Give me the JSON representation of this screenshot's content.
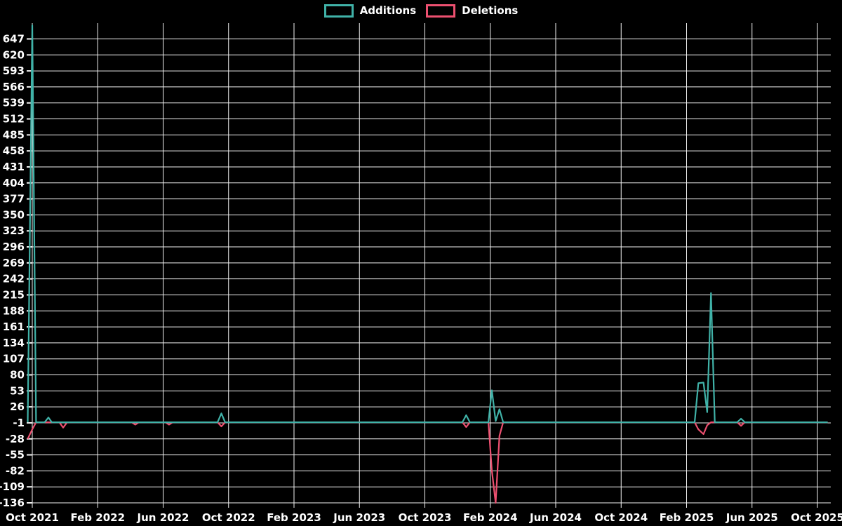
{
  "legend": {
    "items": [
      {
        "label": "Additions",
        "color": "#40b2a8"
      },
      {
        "label": "Deletions",
        "color": "#ed5070"
      }
    ]
  },
  "chart_data": {
    "type": "line",
    "title": "",
    "background_color": "#000000",
    "grid_color": "#f2f2f2",
    "text_color": "#ffffff",
    "grid": true,
    "legend_position": "top-center",
    "x_axis": {
      "start": "2021-09-23",
      "end": "2025-10-20",
      "tick_labels": [
        "Oct 2021",
        "Feb 2022",
        "Jun 2022",
        "Oct 2022",
        "Feb 2023",
        "Jun 2023",
        "Oct 2023",
        "Feb 2024",
        "Jun 2024",
        "Oct 2024",
        "Feb 2025",
        "Jun 2025",
        "Oct 2025"
      ]
    },
    "y_axis": {
      "min": -136,
      "max": 647,
      "step": 27,
      "tick_labels": [
        647,
        620,
        593,
        566,
        539,
        512,
        485,
        458,
        431,
        404,
        377,
        350,
        323,
        296,
        269,
        242,
        215,
        188,
        161,
        134,
        107,
        80,
        53,
        26,
        -1,
        -28,
        -55,
        -82,
        -109,
        -136
      ]
    },
    "series": [
      {
        "name": "Additions",
        "color": "#40b2a8"
      },
      {
        "name": "Deletions",
        "color": "#ed5070"
      }
    ],
    "points_format": [
      "date",
      "additions",
      "deletions"
    ],
    "points": [
      [
        "2021-09-23",
        0,
        -28
      ],
      [
        "2021-10-01",
        670,
        -12
      ],
      [
        "2021-10-08",
        0,
        0
      ],
      [
        "2021-10-24",
        0,
        0
      ],
      [
        "2021-10-31",
        8,
        0
      ],
      [
        "2021-11-07",
        0,
        0
      ],
      [
        "2021-11-21",
        0,
        0
      ],
      [
        "2021-11-28",
        0,
        -9
      ],
      [
        "2021-12-05",
        0,
        0
      ],
      [
        "2022-04-03",
        0,
        0
      ],
      [
        "2022-04-10",
        0,
        -4
      ],
      [
        "2022-04-17",
        0,
        0
      ],
      [
        "2022-06-05",
        0,
        0
      ],
      [
        "2022-06-12",
        0,
        -4
      ],
      [
        "2022-06-19",
        0,
        0
      ],
      [
        "2022-09-11",
        0,
        0
      ],
      [
        "2022-09-18",
        15,
        -7
      ],
      [
        "2022-09-25",
        0,
        0
      ],
      [
        "2023-12-10",
        0,
        0
      ],
      [
        "2023-12-17",
        12,
        -8
      ],
      [
        "2023-12-24",
        0,
        0
      ],
      [
        "2024-01-28",
        0,
        0
      ],
      [
        "2024-02-04",
        54,
        -82
      ],
      [
        "2024-02-11",
        2,
        -136
      ],
      [
        "2024-02-18",
        22,
        -23
      ],
      [
        "2024-02-25",
        0,
        0
      ],
      [
        "2025-02-16",
        0,
        0
      ],
      [
        "2025-02-23",
        66,
        -12
      ],
      [
        "2025-03-02",
        67,
        -20
      ],
      [
        "2025-03-09",
        17,
        -5
      ],
      [
        "2025-03-16",
        218,
        0
      ],
      [
        "2025-03-23",
        0,
        0
      ],
      [
        "2025-05-04",
        0,
        0
      ],
      [
        "2025-05-11",
        6,
        -6
      ],
      [
        "2025-05-18",
        0,
        0
      ],
      [
        "2025-10-20",
        0,
        0
      ]
    ]
  }
}
